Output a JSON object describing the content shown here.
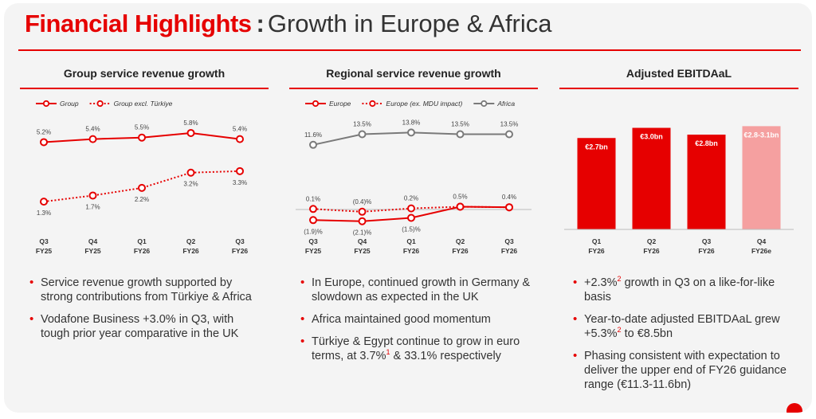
{
  "slide": {
    "title_highlight": "Financial Highlights",
    "title_separator": ":",
    "title_rest": "Growth in Europe & Africa"
  },
  "colors": {
    "accent": "#e60000",
    "light_accent": "#f5a0a0",
    "grey_series": "#7a7a7a"
  },
  "chart_data": [
    {
      "type": "line",
      "title": "Group service revenue growth",
      "categories": [
        "Q3\nFY25",
        "Q4\nFY25",
        "Q1\nFY26",
        "Q2\nFY26",
        "Q3\nFY26"
      ],
      "ylim": [
        0,
        7
      ],
      "series": [
        {
          "name": "Group",
          "style": "solid",
          "color": "#e60000",
          "values": [
            5.2,
            5.4,
            5.5,
            5.8,
            5.4
          ],
          "labels": [
            "5.2%",
            "5.4%",
            "5.5%",
            "5.8%",
            "5.4%"
          ],
          "label_pos": "above"
        },
        {
          "name": "Group excl. Türkiye",
          "style": "dotted",
          "color": "#e60000",
          "values": [
            1.3,
            1.7,
            2.2,
            3.2,
            3.3
          ],
          "labels": [
            "1.3%",
            "1.7%",
            "2.2%",
            "3.2%",
            "3.3%"
          ],
          "label_pos": "below"
        }
      ]
    },
    {
      "type": "line",
      "title": "Regional service revenue growth",
      "categories": [
        "Q3\nFY25",
        "Q4\nFY25",
        "Q1\nFY26",
        "Q2\nFY26",
        "Q3\nFY26"
      ],
      "ylim": [
        -3,
        15
      ],
      "zero_line": true,
      "series": [
        {
          "name": "Africa",
          "style": "solid",
          "color": "#7a7a7a",
          "values": [
            11.6,
            13.5,
            13.8,
            13.5,
            13.5
          ],
          "labels": [
            "11.6%",
            "13.5%",
            "13.8%",
            "13.5%",
            "13.5%"
          ],
          "label_pos": "above"
        },
        {
          "name": "Europe (ex. MDU impact)",
          "style": "dotted",
          "color": "#e60000",
          "values": [
            0.1,
            -0.4,
            0.2,
            0.5,
            0.4
          ],
          "labels": [
            "0.1%",
            "(0.4)%",
            "0.2%",
            "0.5%",
            "0.4%"
          ],
          "label_pos": "above"
        },
        {
          "name": "Europe",
          "style": "solid",
          "color": "#e60000",
          "values": [
            -1.9,
            -2.1,
            -1.5,
            0.5,
            0.4
          ],
          "labels": [
            "(1.9)%",
            "(2.1)%",
            "(1.5)%",
            "",
            ""
          ],
          "label_pos": "below"
        }
      ],
      "legend_order": [
        "Europe",
        "Europe (ex. MDU impact)",
        "Africa"
      ]
    },
    {
      "type": "bar",
      "title": "Adjusted EBITDAaL",
      "categories": [
        "Q1\nFY26",
        "Q2\nFY26",
        "Q3\nFY26",
        "Q4\nFY26e"
      ],
      "values": [
        2.7,
        3.0,
        2.8,
        3.05
      ],
      "labels": [
        "€2.7bn",
        "€3.0bn",
        "€2.8bn",
        "€2.8-3.1bn"
      ],
      "estimate": [
        false,
        false,
        false,
        true
      ],
      "ylim": [
        0,
        3.2
      ]
    }
  ],
  "bullets": {
    "left": [
      "Service revenue growth supported by strong contributions from Türkiye & Africa",
      "Vodafone Business +3.0% in Q3, with tough prior year comparative in the UK"
    ],
    "middle": [
      "In Europe, continued growth in Germany & slowdown as expected in the UK",
      "Africa maintained good momentum",
      {
        "pre": "Türkiye & Egypt continue to grow in euro terms, at 3.7%",
        "sup": "1",
        "post": " & 33.1% respectively"
      }
    ],
    "right": [
      {
        "pre": "+2.3%",
        "sup": "2",
        "post": " growth in Q3 on a like-for-like basis"
      },
      {
        "pre": "Year-to-date adjusted EBITDAaL grew +5.3%",
        "sup": "2",
        "post": " to €8.5bn"
      },
      "Phasing consistent with expectation to deliver the upper end of FY26 guidance range (€11.3-11.6bn)"
    ]
  }
}
